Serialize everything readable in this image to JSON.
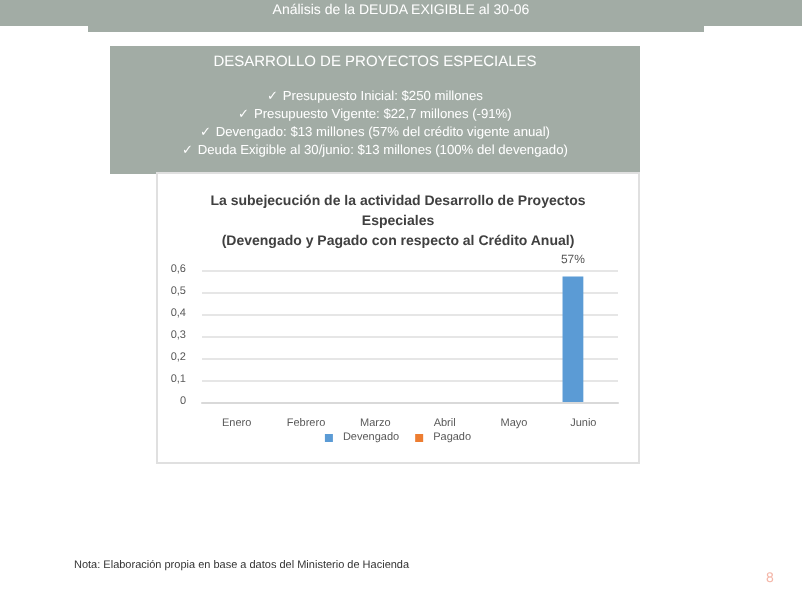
{
  "chart_data": {
    "type": "bar",
    "title": "La subejecución de la actividad Desarrollo de Proyectos\nEspeciales\n(Devengado y Pagado con respecto al Crédito Anual)",
    "annotations": [
      "Análisis de la DEUDA EXIGIBLE al 30-06",
      "DESARROLLO DE PROYECTOS ESPECIALES",
      "✓  Presupuesto Inicial:  $250 millones",
      "✓  Presupuesto Vigente: $22,7 millones (-91%)",
      "✓  Devengado:  $13 millones (57% del crédito vigente anual)",
      "✓  Deuda Exigible al 30/junio:  $13 millones (100% del devengado)",
      "Nota: Elaboración propia en base a datos del Ministerio de Hacienda",
      "8"
    ],
    "categories": [
      "Enero",
      "Febrero",
      "Marzo",
      "Abril",
      "Mayo",
      "Junio"
    ],
    "series": [
      {
        "name": "Devengado",
        "color": "#5b9bd5",
        "values": [
          0,
          0,
          0,
          0,
          0,
          0.57
        ],
        "value_labels": [
          null,
          null,
          null,
          null,
          null,
          "57%"
        ]
      },
      {
        "name": "Pagado",
        "color": "#ed7d31",
        "values": [
          0,
          0,
          0,
          0,
          0,
          0
        ]
      }
    ],
    "ylim": [
      0,
      0.6
    ],
    "yticks": [
      0,
      {
        "value": 0.1,
        "label": "0,1"
      },
      {
        "value": 0.2,
        "label": "0,2"
      },
      {
        "value": 0.3,
        "label": "0,3"
      },
      {
        "value": 0.4,
        "label": "0,4"
      },
      {
        "value": 0.5,
        "label": "0,5"
      },
      {
        "value": 0.6,
        "label": "0,6"
      }
    ],
    "grid": "y",
    "legend": "bottom"
  }
}
